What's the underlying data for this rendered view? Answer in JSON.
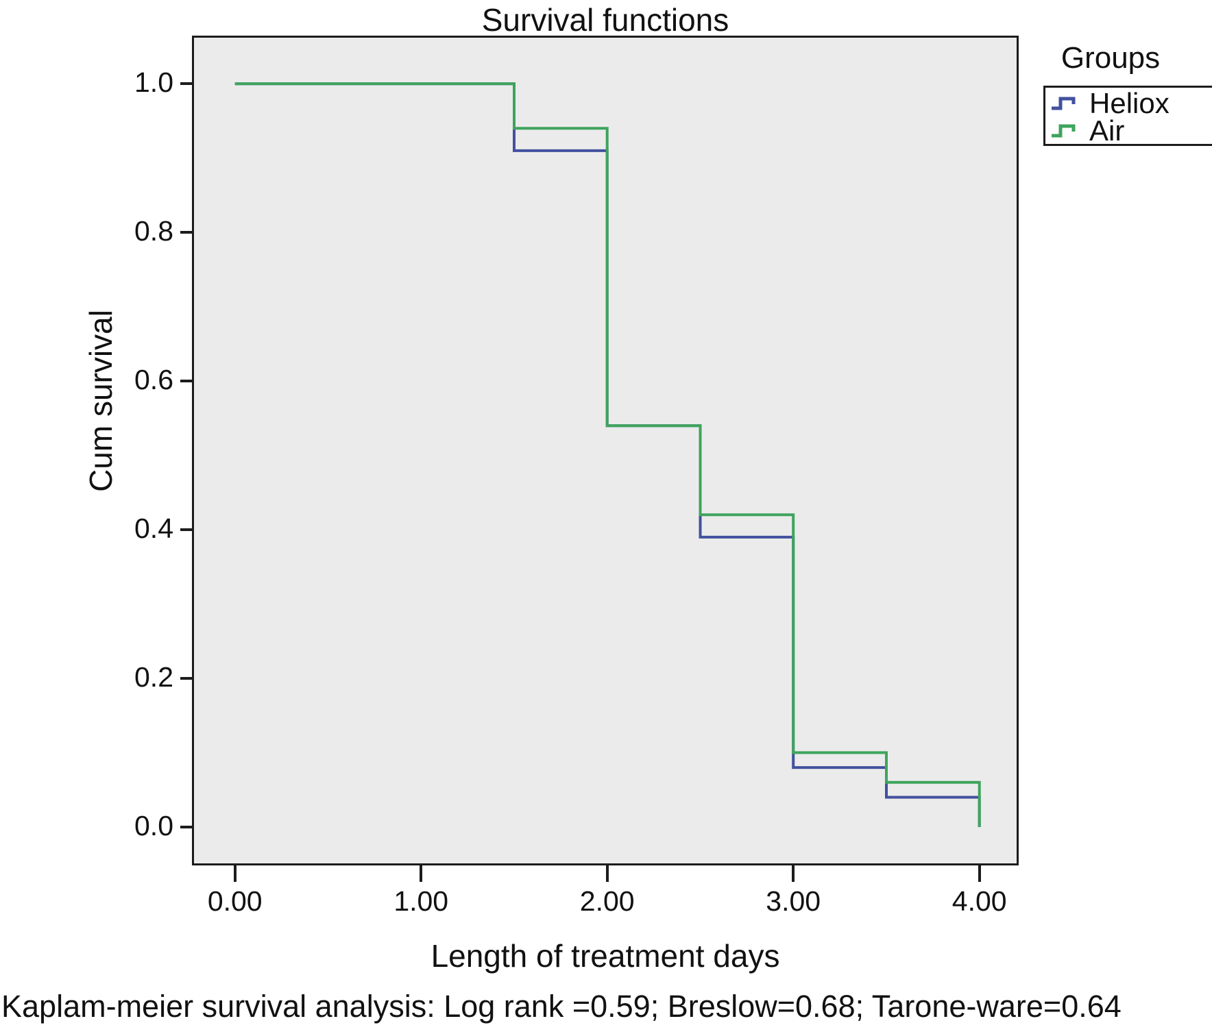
{
  "title": "Survival functions",
  "legend": {
    "title": "Groups",
    "entries": [
      {
        "label": "Heliox",
        "color": "#42519E"
      },
      {
        "label": "Air",
        "color": "#3EA45C"
      }
    ]
  },
  "caption": "Kaplam-meier survival analysis: Log rank =0.59; Breslow=0.68; Tarone-ware=0.64",
  "colors": {
    "heliox_line": "#42519E",
    "air_line": "#3EA45C",
    "plot_background": "#ebebeb",
    "axis_and_text": "#1c1c1c"
  },
  "chart_data": {
    "type": "line",
    "subtype": "kaplan-meier-step",
    "title": "Survival functions",
    "xlabel": "Length of treatment days",
    "ylabel": "Cum survival",
    "xlim": [
      -0.22,
      4.2
    ],
    "ylim": [
      -0.049,
      1.062
    ],
    "x_ticks": [
      0,
      1,
      2,
      3,
      4
    ],
    "x_tick_labels": [
      "0.00",
      "1.00",
      "2.00",
      "3.00",
      "4.00"
    ],
    "y_ticks": [
      0,
      0.2,
      0.4,
      0.6,
      0.8,
      1.0
    ],
    "y_tick_labels": [
      "0.0",
      "0.2",
      "0.4",
      "0.6",
      "0.8",
      "1.0"
    ],
    "grid": false,
    "legend_position": "top-right-outside",
    "series": [
      {
        "name": "Heliox",
        "color": "#42519E",
        "x": [
          0,
          1.5,
          1.5,
          2,
          2,
          2.5,
          2.5,
          3,
          3,
          3.5,
          3.5,
          4,
          4
        ],
        "y": [
          1.0,
          1.0,
          0.91,
          0.91,
          0.54,
          0.54,
          0.39,
          0.39,
          0.08,
          0.08,
          0.04,
          0.04,
          0.0
        ]
      },
      {
        "name": "Air",
        "color": "#3EA45C",
        "x": [
          0,
          1.5,
          1.5,
          2,
          2,
          2.5,
          2.5,
          3,
          3,
          3.5,
          3.5,
          4,
          4
        ],
        "y": [
          1.0,
          1.0,
          0.94,
          0.94,
          0.54,
          0.54,
          0.42,
          0.42,
          0.1,
          0.1,
          0.06,
          0.06,
          0.0
        ]
      }
    ]
  }
}
